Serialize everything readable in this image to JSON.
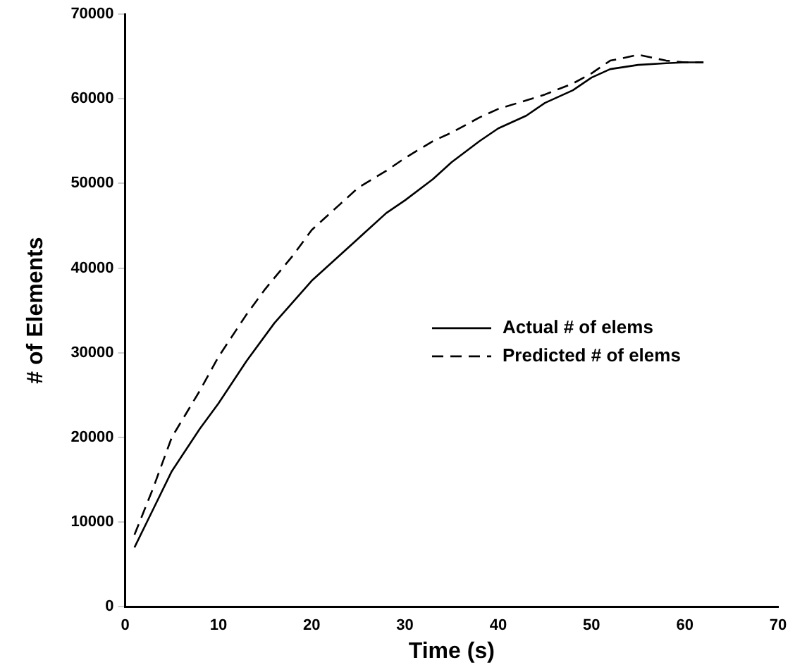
{
  "chart_data": {
    "type": "line",
    "xlabel": "Time (s)",
    "ylabel": "# of Elements",
    "xlim": [
      0,
      70
    ],
    "xticks": [
      0,
      10,
      20,
      30,
      40,
      50,
      60,
      70
    ],
    "ylim": [
      0,
      70000
    ],
    "yticks": [
      0,
      10000,
      20000,
      30000,
      40000,
      50000,
      60000,
      70000
    ],
    "grid": false,
    "legend": "right",
    "marker": "none",
    "series": [
      {
        "name": "Actual # of elems",
        "color": "#000000",
        "line_style": "solid",
        "x": [
          1,
          3,
          5,
          8,
          10,
          13,
          16,
          18,
          20,
          23,
          25,
          28,
          30,
          33,
          35,
          38,
          40,
          43,
          45,
          48,
          50,
          52,
          55,
          58,
          60,
          62
        ],
        "values": [
          7000,
          11500,
          16000,
          21000,
          24000,
          29000,
          33500,
          36000,
          38500,
          41500,
          43500,
          46500,
          48000,
          50500,
          52500,
          55000,
          56500,
          58000,
          59500,
          61000,
          62500,
          63500,
          64000,
          64200,
          64300,
          64300
        ]
      },
      {
        "name": "Predicted # of elems",
        "color": "#000000",
        "line_style": "dashed",
        "x": [
          1,
          3,
          5,
          8,
          10,
          13,
          15,
          18,
          20,
          23,
          25,
          28,
          30,
          33,
          35,
          38,
          40,
          43,
          45,
          48,
          50,
          52,
          53,
          55,
          58,
          60,
          62
        ],
        "values": [
          8500,
          14000,
          20000,
          25500,
          29500,
          34500,
          37500,
          41500,
          44500,
          47500,
          49500,
          51500,
          53000,
          55000,
          56000,
          57800,
          58800,
          59800,
          60500,
          61800,
          63000,
          64500,
          64700,
          65200,
          64500,
          64300,
          64300
        ]
      }
    ]
  }
}
